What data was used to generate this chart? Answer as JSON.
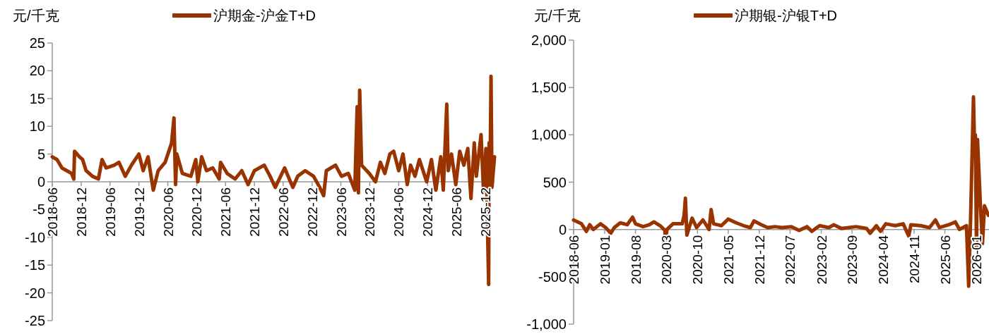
{
  "chart_data": [
    {
      "type": "line",
      "ylabel": "元/千克",
      "legend": "top",
      "line_style": "solid",
      "xlim": [
        "2018-06-01",
        "2026-01-28"
      ],
      "ylim": [
        -25,
        25
      ],
      "yticks": [
        -25,
        -20,
        -15,
        -10,
        -5,
        0,
        5,
        10,
        15,
        20,
        25
      ],
      "xticks": [
        "2018-06",
        "2018-12",
        "2019-06",
        "2019-12",
        "2020-06",
        "2020-12",
        "2021-06",
        "2021-12",
        "2022-06",
        "2022-12",
        "2023-06",
        "2023-12",
        "2024-06",
        "2024-12",
        "2025-06",
        "2025-12"
      ],
      "series": [
        {
          "name": "沪期金-沪金T+D",
          "color": "#993300",
          "x": [
            "2018-06-01",
            "2018-07-01",
            "2018-08-01",
            "2018-09-01",
            "2018-10-01",
            "2018-10-15",
            "2018-10-20",
            "2018-11-20",
            "2018-12-10",
            "2019-01-01",
            "2019-02-10",
            "2019-03-20",
            "2019-04-12",
            "2019-05-08",
            "2019-06-28",
            "2019-07-28",
            "2019-09-06",
            "2019-10-15",
            "2019-12-01",
            "2019-12-28",
            "2020-01-28",
            "2020-03-01",
            "2020-04-01",
            "2020-05-15",
            "2020-06-25",
            "2020-07-10",
            "2020-07-20",
            "2020-07-28",
            "2020-09-01",
            "2020-10-25",
            "2020-11-25",
            "2020-12-08",
            "2021-01-01",
            "2021-02-01",
            "2021-03-12",
            "2021-04-22",
            "2021-05-01",
            "2021-06-12",
            "2021-08-01",
            "2021-09-12",
            "2021-10-22",
            "2021-12-01",
            "2022-02-01",
            "2022-03-10",
            "2022-04-12",
            "2022-06-10",
            "2022-08-01",
            "2022-09-01",
            "2022-10-18",
            "2022-12-10",
            "2023-01-18",
            "2023-02-12",
            "2023-03-01",
            "2023-04-28",
            "2023-06-05",
            "2023-07-18",
            "2023-08-28",
            "2023-09-12",
            "2023-09-20",
            "2023-09-28",
            "2023-10-10",
            "2023-11-28",
            "2024-01-06",
            "2024-02-06",
            "2024-03-05",
            "2024-04-06",
            "2024-04-30",
            "2024-06-01",
            "2024-06-28",
            "2024-07-25",
            "2024-08-15",
            "2024-09-12",
            "2024-10-10",
            "2024-11-25",
            "2024-12-25",
            "2025-01-22",
            "2025-02-22",
            "2025-03-10",
            "2025-04-01",
            "2025-04-10",
            "2025-05-01",
            "2025-05-28",
            "2025-06-22",
            "2025-07-18",
            "2025-08-12",
            "2025-09-01",
            "2025-09-22",
            "2025-10-05",
            "2025-11-04",
            "2025-11-20",
            "2025-12-05",
            "2025-12-22",
            "2025-12-25",
            "2025-12-30",
            "2026-01-06",
            "2026-01-12",
            "2026-01-28"
          ],
          "values": [
            4.5,
            4,
            2.5,
            2,
            1.5,
            0.5,
            5.5,
            4.5,
            4,
            2,
            1,
            0.5,
            4,
            2.5,
            3,
            3.5,
            1,
            3,
            5,
            2,
            4.5,
            -1.5,
            2,
            3.5,
            7,
            11.5,
            -0.5,
            5,
            1.5,
            1,
            4,
            0,
            4.5,
            2,
            2.5,
            0.5,
            3.5,
            1.5,
            0.5,
            2,
            -0.5,
            2,
            3,
            1,
            -1,
            2.5,
            -1,
            1,
            2,
            1,
            -1,
            -2.5,
            2,
            3,
            1,
            1.5,
            -1.5,
            13.5,
            -2,
            16.5,
            3,
            1.5,
            0,
            3.5,
            1.5,
            5,
            5.5,
            2,
            5,
            -0.5,
            3,
            1,
            4,
            0,
            4,
            -1.5,
            4.5,
            -1.5,
            14,
            2,
            5,
            -0.5,
            5.5,
            3,
            6,
            -3,
            7,
            1,
            8.5,
            -2,
            6,
            -18.5,
            7,
            -2,
            19,
            -1,
            4.5
          ]
        }
      ]
    },
    {
      "type": "line",
      "ylabel": "元/千克",
      "legend": "top",
      "line_style": "solid",
      "xlim": [
        "2018-06-01",
        "2026-04-01"
      ],
      "ylim": [
        -1000,
        2000
      ],
      "yticks": [
        {
          "value": -1000,
          "label": "-1,000"
        },
        -500,
        0,
        500,
        {
          "value": 1000,
          "label": "1,000"
        },
        {
          "value": 1500,
          "label": "1,500"
        },
        {
          "value": 2000,
          "label": "2,000"
        }
      ],
      "xticks": [
        "2018-06",
        "2019-01",
        "2019-08",
        "2020-03",
        "2020-10",
        "2021-05",
        "2021-12",
        "2022-07",
        "2023-02",
        "2023-09",
        "2024-04",
        "2024-11",
        "2025-06",
        "2026-01"
      ],
      "series": [
        {
          "name": "沪期银-沪银T+D",
          "color": "#993300",
          "x": [
            "2018-06-01",
            "2018-07-25",
            "2018-08-28",
            "2018-09-20",
            "2018-10-15",
            "2018-12-03",
            "2019-01-08",
            "2019-02-12",
            "2019-03-08",
            "2019-04-18",
            "2019-06-05",
            "2019-07-12",
            "2019-08-01",
            "2019-09-22",
            "2019-11-05",
            "2019-12-06",
            "2020-01-18",
            "2020-02-20",
            "2020-02-22",
            "2020-03-05",
            "2020-04-15",
            "2020-06-18",
            "2020-07-01",
            "2020-07-10",
            "2020-07-20",
            "2020-08-25",
            "2020-09-25",
            "2020-11-08",
            "2020-12-20",
            "2021-01-03",
            "2021-01-20",
            "2021-03-15",
            "2021-05-01",
            "2021-06-25",
            "2021-08-15",
            "2021-09-30",
            "2021-10-25",
            "2021-12-15",
            "2022-01-28",
            "2022-03-20",
            "2022-05-05",
            "2022-07-10",
            "2022-09-01",
            "2022-10-25",
            "2022-11-28",
            "2023-01-20",
            "2023-03-25",
            "2023-04-28",
            "2023-06-20",
            "2023-09-28",
            "2023-12-10",
            "2024-01-03",
            "2024-02-15",
            "2024-03-15",
            "2024-04-20",
            "2024-06-25",
            "2024-08-18",
            "2024-09-25",
            "2024-10-10",
            "2024-12-15",
            "2025-02-15",
            "2025-03-28",
            "2025-04-25",
            "2025-06-28",
            "2025-08-12",
            "2025-09-10",
            "2025-10-28",
            "2025-11-12",
            "2025-11-25",
            "2025-12-15",
            "2025-12-22",
            "2025-12-28",
            "2026-01-05",
            "2026-01-12",
            "2026-02-01",
            "2026-02-15",
            "2026-03-01",
            "2026-03-28"
          ],
          "values": [
            100,
            60,
            -20,
            50,
            0,
            60,
            20,
            -40,
            20,
            70,
            50,
            130,
            60,
            30,
            50,
            80,
            40,
            -10,
            -150,
            0,
            60,
            60,
            150,
            330,
            -60,
            120,
            20,
            100,
            0,
            210,
            60,
            40,
            110,
            70,
            40,
            20,
            90,
            50,
            20,
            30,
            20,
            30,
            -10,
            30,
            -20,
            40,
            20,
            50,
            10,
            30,
            10,
            -40,
            40,
            -20,
            60,
            40,
            60,
            -70,
            50,
            40,
            20,
            100,
            20,
            50,
            80,
            0,
            40,
            -600,
            100,
            1400,
            900,
            1000,
            -200,
            950,
            250,
            -150,
            250,
            150
          ]
        }
      ]
    }
  ]
}
